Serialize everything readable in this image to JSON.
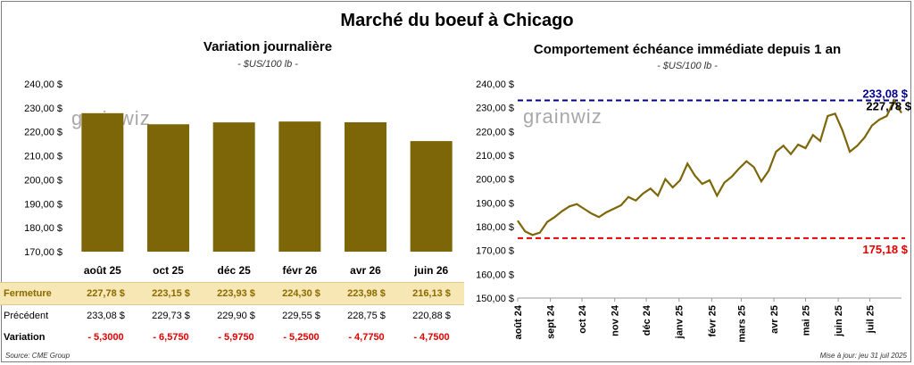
{
  "title": "Marché du boeuf à Chicago",
  "colors": {
    "bar": "#7d6608",
    "line": "#7d6608",
    "max_line": "#00008b",
    "min_line": "#e00000"
  },
  "left_chart": {
    "title": "Variation journalière",
    "unit": "- $US/100 lb -",
    "watermark": "grainwiz",
    "y_ticks": [
      "240,00 $",
      "230,00 $",
      "220,00 $",
      "210,00 $",
      "200,00 $",
      "190,00 $",
      "180,00 $",
      "170,00 $"
    ]
  },
  "right_chart": {
    "title": "Comportement échéance immédiate depuis 1 an",
    "unit": "- $US/100 lb -",
    "watermark": "grainwiz",
    "y_ticks": [
      "240,00 $",
      "230,00 $",
      "220,00 $",
      "210,00 $",
      "200,00 $",
      "190,00 $",
      "180,00 $",
      "170,00 $",
      "160,00 $",
      "150,00 $"
    ],
    "x_ticks": [
      "août 24",
      "sept 24",
      "oct 24",
      "nov 24",
      "déc 24",
      "janv 25",
      "févr 25",
      "mars 25",
      "avr 25",
      "mai 25",
      "juin 25",
      "juil 25"
    ],
    "max_label": "233,08 $",
    "min_label": "175,18 $",
    "last_label": "227,78 $"
  },
  "chart_data": [
    {
      "type": "bar",
      "title": "Variation journalière",
      "categories": [
        "août 25",
        "oct 25",
        "déc 25",
        "févr 26",
        "avr 26",
        "juin 26"
      ],
      "values": [
        227.78,
        223.15,
        223.93,
        224.3,
        223.98,
        216.13
      ],
      "ylim": [
        170,
        240
      ]
    },
    {
      "type": "line",
      "title": "Comportement échéance immédiate depuis 1 an",
      "x": [
        "2024-08-01",
        "2024-08-08",
        "2024-08-15",
        "2024-08-22",
        "2024-08-29",
        "2024-09-05",
        "2024-09-12",
        "2024-09-19",
        "2024-09-26",
        "2024-10-03",
        "2024-10-10",
        "2024-10-17",
        "2024-10-24",
        "2024-10-31",
        "2024-11-07",
        "2024-11-14",
        "2024-11-21",
        "2024-11-28",
        "2024-12-05",
        "2024-12-12",
        "2024-12-19",
        "2024-12-26",
        "2025-01-02",
        "2025-01-09",
        "2025-01-16",
        "2025-01-23",
        "2025-01-30",
        "2025-02-06",
        "2025-02-13",
        "2025-02-20",
        "2025-02-27",
        "2025-03-06",
        "2025-03-13",
        "2025-03-20",
        "2025-03-27",
        "2025-04-03",
        "2025-04-10",
        "2025-04-17",
        "2025-04-24",
        "2025-05-01",
        "2025-05-08",
        "2025-05-15",
        "2025-05-22",
        "2025-05-29",
        "2025-06-05",
        "2025-06-12",
        "2025-06-19",
        "2025-06-26",
        "2025-07-03",
        "2025-07-10",
        "2025-07-17",
        "2025-07-24",
        "2025-07-31"
      ],
      "values": [
        182.5,
        178.0,
        176.5,
        177.5,
        182.0,
        184.0,
        186.5,
        188.5,
        189.5,
        187.5,
        185.5,
        184.0,
        186.0,
        187.5,
        189.0,
        192.5,
        191.0,
        194.0,
        196.0,
        193.0,
        200.0,
        196.5,
        199.5,
        206.5,
        201.5,
        198.0,
        199.5,
        193.0,
        198.5,
        201.0,
        204.5,
        207.5,
        205.0,
        199.0,
        203.5,
        211.5,
        214.0,
        210.5,
        214.5,
        213.0,
        218.5,
        216.0,
        226.5,
        227.5,
        220.5,
        211.5,
        214.0,
        217.5,
        222.5,
        225.0,
        226.5,
        233.08,
        227.78
      ],
      "ylim": [
        150,
        240
      ],
      "max": 233.08,
      "min": 175.18,
      "last": 227.78
    }
  ],
  "table": {
    "rows": [
      {
        "label": "Fermeture",
        "cells": [
          "227,78  $",
          "223,15  $",
          "223,93  $",
          "224,30  $",
          "223,98  $",
          "216,13  $"
        ]
      },
      {
        "label": "Précédent",
        "cells": [
          "233,08  $",
          "229,73  $",
          "229,90  $",
          "229,55  $",
          "228,75  $",
          "220,88  $"
        ]
      },
      {
        "label": "Variation",
        "cells": [
          "- 5,3000",
          "- 6,5750",
          "- 5,9750",
          "- 5,2500",
          "- 4,7750",
          "- 4,7500"
        ]
      }
    ]
  },
  "footer": {
    "source": "Source: CME Group",
    "updated": "Mise à jour: jeu 31 juil 2025"
  }
}
